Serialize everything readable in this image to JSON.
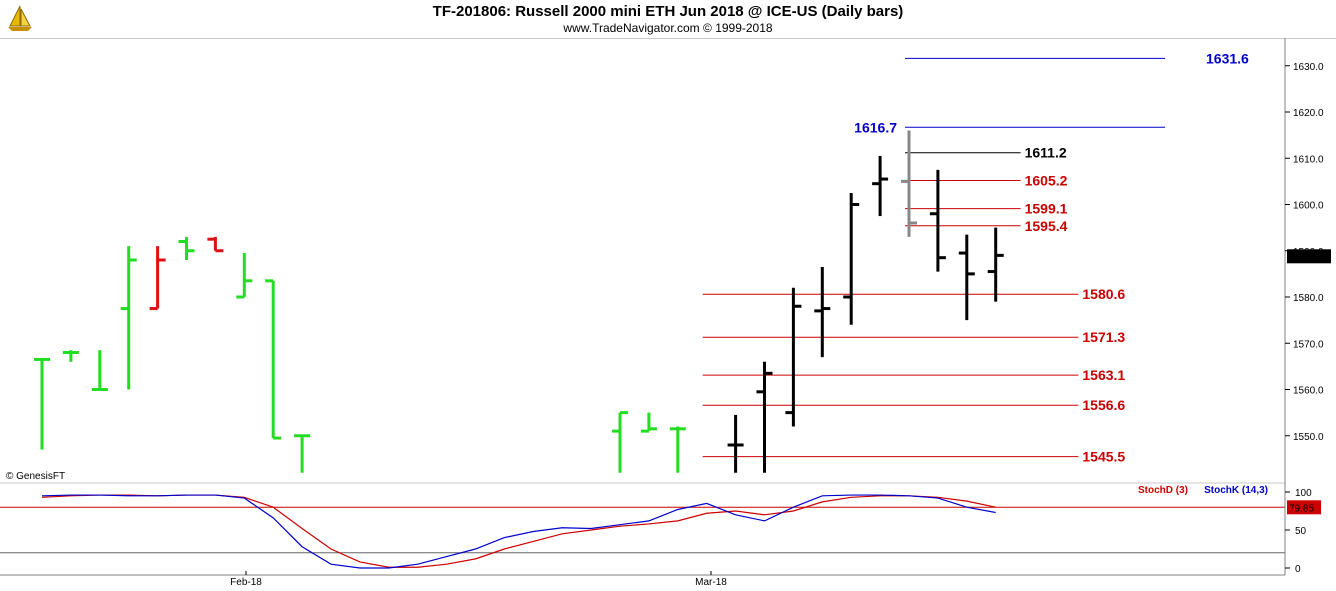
{
  "header": {
    "title": "TF-201806:  Russell 2000 mini ETH Jun 2018 @ ICE-US  (Daily bars)",
    "subtitle": "www.TradeNavigator.com © 1999-2018"
  },
  "watermark": "© GenesisFT",
  "colors": {
    "up": "#22dd22",
    "down": "#dd1111",
    "neutral": "#000000",
    "gray": "#888888",
    "level_red": "#cc0000",
    "level_blue": "#0000cc",
    "stoch_k": "#0000cc",
    "stoch_d": "#cc0000"
  },
  "chart_data": [
    {
      "type": "ohlc",
      "ylim": [
        1540,
        1636
      ],
      "y_ticks": [
        "1550.0",
        "1560.0",
        "1570.0",
        "1580.0",
        "1590.0",
        "1600.0",
        "1610.0",
        "1620.0",
        "1630.0"
      ],
      "x_labels": [
        "Feb-18",
        "Mar-18"
      ],
      "last_price": "1588.8",
      "bars": [
        {
          "slot": 0,
          "o": 1566.5,
          "h": 1566.5,
          "l": 1547.0,
          "c": 1566.5,
          "col": "up"
        },
        {
          "slot": 1,
          "o": 1568.0,
          "h": 1568.5,
          "l": 1566.0,
          "c": 1568.0,
          "col": "up"
        },
        {
          "slot": 2,
          "o": 1560.0,
          "h": 1568.5,
          "l": 1560.0,
          "c": 1560.0,
          "col": "up"
        },
        {
          "slot": 3,
          "o": 1577.5,
          "h": 1591.0,
          "l": 1560.0,
          "c": 1588.0,
          "col": "up"
        },
        {
          "slot": 4,
          "o": 1577.5,
          "h": 1591.0,
          "l": 1577.5,
          "c": 1588.0,
          "col": "down"
        },
        {
          "slot": 5,
          "o": 1592.0,
          "h": 1593.0,
          "l": 1588.0,
          "c": 1590.0,
          "col": "up"
        },
        {
          "slot": 6,
          "o": 1592.5,
          "h": 1593.0,
          "l": 1590.0,
          "c": 1590.0,
          "col": "down"
        },
        {
          "slot": 7,
          "o": 1580.0,
          "h": 1589.5,
          "l": 1580.0,
          "c": 1583.5,
          "col": "up"
        },
        {
          "slot": 8,
          "o": 1583.5,
          "h": 1583.5,
          "l": 1549.5,
          "c": 1549.5,
          "col": "up"
        },
        {
          "slot": 9,
          "o": 1550.0,
          "h": 1550.0,
          "l": 1542.0,
          "c": 1550.0,
          "col": "up"
        },
        {
          "slot": 20,
          "o": 1551.0,
          "h": 1555.0,
          "l": 1542.0,
          "c": 1555.0,
          "col": "up"
        },
        {
          "slot": 21,
          "o": 1551.0,
          "h": 1555.0,
          "l": 1551.0,
          "c": 1551.5,
          "col": "up"
        },
        {
          "slot": 22,
          "o": 1551.5,
          "h": 1552.0,
          "l": 1542.0,
          "c": 1551.5,
          "col": "up"
        },
        {
          "slot": 24,
          "o": 1548.0,
          "h": 1554.5,
          "l": 1542.0,
          "c": 1548.0,
          "col": "neutral"
        },
        {
          "slot": 25,
          "o": 1559.5,
          "h": 1566.0,
          "l": 1542.0,
          "c": 1563.5,
          "col": "neutral"
        },
        {
          "slot": 26,
          "o": 1555.0,
          "h": 1582.0,
          "l": 1552.0,
          "c": 1578.0,
          "col": "neutral"
        },
        {
          "slot": 27,
          "o": 1577.0,
          "h": 1586.5,
          "l": 1567.0,
          "c": 1577.5,
          "col": "neutral"
        },
        {
          "slot": 28,
          "o": 1580.0,
          "h": 1602.5,
          "l": 1574.0,
          "c": 1600.0,
          "col": "neutral"
        },
        {
          "slot": 29,
          "o": 1604.5,
          "h": 1610.5,
          "l": 1597.5,
          "c": 1605.5,
          "col": "neutral"
        },
        {
          "slot": 30,
          "o": 1605.0,
          "h": 1616.0,
          "l": 1593.0,
          "c": 1596.0,
          "col": "gray"
        },
        {
          "slot": 31,
          "o": 1598.0,
          "h": 1607.5,
          "l": 1585.5,
          "c": 1588.5,
          "col": "neutral"
        },
        {
          "slot": 32,
          "o": 1589.5,
          "h": 1593.5,
          "l": 1575.0,
          "c": 1585.0,
          "col": "neutral"
        },
        {
          "slot": 33,
          "o": 1585.5,
          "h": 1595.0,
          "l": 1579.0,
          "c": 1589.0,
          "col": "neutral"
        }
      ],
      "levels": [
        {
          "label": "1631.6",
          "value": 1631.6,
          "from_slot": 30,
          "to_slot": 39,
          "color": "level_blue",
          "label_side": "right"
        },
        {
          "label": "1616.7",
          "value": 1616.7,
          "from_slot": 30,
          "to_slot": 39,
          "color": "level_blue",
          "label_side": "left"
        },
        {
          "label": "1611.2",
          "value": 1611.2,
          "from_slot": 30,
          "to_slot": 34,
          "color": "neutral",
          "label_side": "right"
        },
        {
          "label": "1605.2",
          "value": 1605.2,
          "from_slot": 30,
          "to_slot": 34,
          "color": "level_red",
          "label_side": "right"
        },
        {
          "label": "1599.1",
          "value": 1599.1,
          "from_slot": 30,
          "to_slot": 34,
          "color": "level_red",
          "label_side": "right"
        },
        {
          "label": "1595.4",
          "value": 1595.4,
          "from_slot": 30,
          "to_slot": 34,
          "color": "level_red",
          "label_side": "right"
        },
        {
          "label": "1580.6",
          "value": 1580.6,
          "from_slot": 23,
          "to_slot": 36,
          "color": "level_red",
          "label_side": "right"
        },
        {
          "label": "1571.3",
          "value": 1571.3,
          "from_slot": 23,
          "to_slot": 36,
          "color": "level_red",
          "label_side": "right"
        },
        {
          "label": "1563.1",
          "value": 1563.1,
          "from_slot": 23,
          "to_slot": 36,
          "color": "level_red",
          "label_side": "right"
        },
        {
          "label": "1556.6",
          "value": 1556.6,
          "from_slot": 23,
          "to_slot": 36,
          "color": "level_red",
          "label_side": "right"
        },
        {
          "label": "1545.5",
          "value": 1545.5,
          "from_slot": 23,
          "to_slot": 36,
          "color": "level_red",
          "label_side": "right"
        }
      ]
    },
    {
      "type": "line",
      "ylim": [
        0,
        100
      ],
      "y_ticks": [
        "0",
        "50",
        "100"
      ],
      "reference_lines": [
        80,
        20
      ],
      "last_value": "79.85",
      "series": [
        {
          "name": "StochD (3)",
          "color": "stoch_d",
          "points": [
            [
              0,
              93
            ],
            [
              1,
              95
            ],
            [
              2,
              96
            ],
            [
              3,
              96
            ],
            [
              4,
              95
            ],
            [
              5,
              96
            ],
            [
              6,
              96
            ],
            [
              7,
              93
            ],
            [
              8,
              80
            ],
            [
              9,
              52
            ],
            [
              10,
              25
            ],
            [
              11,
              8
            ],
            [
              12,
              1
            ],
            [
              13,
              1
            ],
            [
              14,
              5
            ],
            [
              15,
              12
            ],
            [
              16,
              25
            ],
            [
              17,
              35
            ],
            [
              18,
              45
            ],
            [
              19,
              50
            ],
            [
              20,
              55
            ],
            [
              21,
              58
            ],
            [
              22,
              62
            ],
            [
              23,
              72
            ],
            [
              24,
              75
            ],
            [
              25,
              70
            ],
            [
              26,
              75
            ],
            [
              27,
              87
            ],
            [
              28,
              93
            ],
            [
              29,
              95
            ],
            [
              30,
              95
            ],
            [
              31,
              93
            ],
            [
              32,
              88
            ],
            [
              33,
              80
            ]
          ]
        },
        {
          "name": "StochK (14,3)",
          "color": "stoch_k",
          "points": [
            [
              0,
              95
            ],
            [
              1,
              96
            ],
            [
              2,
              96
            ],
            [
              3,
              95
            ],
            [
              4,
              95
            ],
            [
              5,
              96
            ],
            [
              6,
              96
            ],
            [
              7,
              92
            ],
            [
              8,
              66
            ],
            [
              9,
              28
            ],
            [
              10,
              5
            ],
            [
              11,
              0
            ],
            [
              12,
              0
            ],
            [
              13,
              5
            ],
            [
              14,
              15
            ],
            [
              15,
              25
            ],
            [
              16,
              40
            ],
            [
              17,
              48
            ],
            [
              18,
              53
            ],
            [
              19,
              52
            ],
            [
              20,
              57
            ],
            [
              21,
              62
            ],
            [
              22,
              77
            ],
            [
              23,
              85
            ],
            [
              24,
              70
            ],
            [
              25,
              62
            ],
            [
              26,
              80
            ],
            [
              27,
              95
            ],
            [
              28,
              96
            ],
            [
              29,
              96
            ],
            [
              30,
              95
            ],
            [
              31,
              92
            ],
            [
              32,
              80
            ],
            [
              33,
              73
            ]
          ]
        }
      ]
    }
  ]
}
